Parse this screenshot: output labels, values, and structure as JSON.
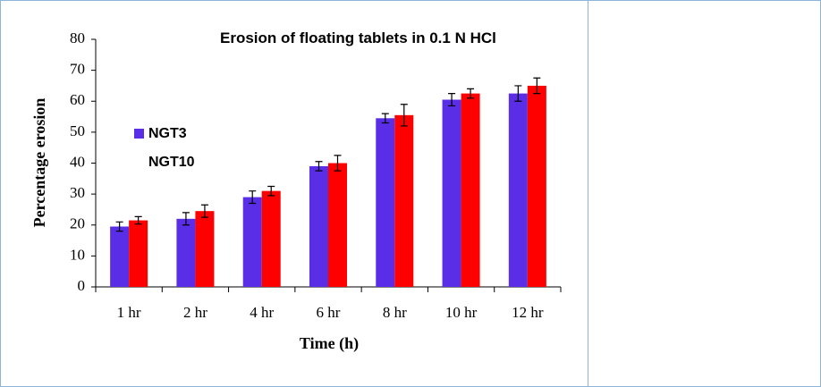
{
  "chart_data": {
    "type": "bar",
    "title": "Erosion of floating tablets in 0.1 N HCl",
    "x_label": "Time (h)",
    "y_label": "Percentage erosion",
    "categories": [
      "1 hr",
      "2 hr",
      "4 hr",
      "6 hr",
      "8 hr",
      "10 hr",
      "12 hr"
    ],
    "series": [
      {
        "name": "NGT3",
        "color": "#5a2de6",
        "values": [
          19.5,
          22,
          29,
          39,
          54.5,
          60.5,
          62.5
        ],
        "errors": [
          1.5,
          2,
          2,
          1.5,
          1.5,
          2,
          2.5
        ]
      },
      {
        "name": "NGT10",
        "color": "#ff0000",
        "values": [
          21.5,
          24.5,
          31,
          40,
          55.5,
          62.5,
          65
        ],
        "errors": [
          1.2,
          2,
          1.5,
          2.5,
          3.5,
          1.5,
          2.5
        ]
      }
    ],
    "ylim": [
      0,
      80
    ],
    "yticks": [
      0,
      10,
      20,
      30,
      40,
      50,
      60,
      70,
      80
    ],
    "legend": "left",
    "grid": false
  }
}
